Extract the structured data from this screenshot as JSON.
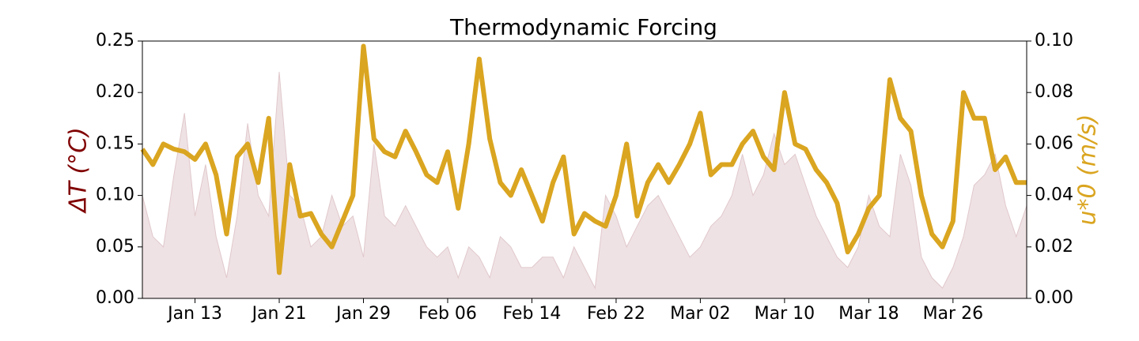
{
  "chart_data": {
    "type": "dual-axis",
    "title": "Thermodynamic Forcing",
    "ylabel": "ΔT (°C)",
    "y2label": "u*0 (m/s)",
    "x": [
      "Jan 08",
      "Jan 09",
      "Jan 10",
      "Jan 11",
      "Jan 12",
      "Jan 13",
      "Jan 14",
      "Jan 15",
      "Jan 16",
      "Jan 17",
      "Jan 18",
      "Jan 19",
      "Jan 20",
      "Jan 21",
      "Jan 22",
      "Jan 23",
      "Jan 24",
      "Jan 25",
      "Jan 26",
      "Jan 27",
      "Jan 28",
      "Jan 29",
      "Jan 30",
      "Jan 31",
      "Feb 01",
      "Feb 02",
      "Feb 03",
      "Feb 04",
      "Feb 05",
      "Feb 06",
      "Feb 07",
      "Feb 08",
      "Feb 09",
      "Feb 10",
      "Feb 11",
      "Feb 12",
      "Feb 13",
      "Feb 14",
      "Feb 15",
      "Feb 16",
      "Feb 17",
      "Feb 18",
      "Feb 19",
      "Feb 20",
      "Feb 21",
      "Feb 22",
      "Feb 23",
      "Feb 24",
      "Feb 25",
      "Feb 26",
      "Feb 27",
      "Feb 28",
      "Mar 01",
      "Mar 02",
      "Mar 03",
      "Mar 04",
      "Mar 05",
      "Mar 06",
      "Mar 07",
      "Mar 08",
      "Mar 09",
      "Mar 10",
      "Mar 11",
      "Mar 12",
      "Mar 13",
      "Mar 14",
      "Mar 15",
      "Mar 16",
      "Mar 17",
      "Mar 18",
      "Mar 19",
      "Mar 20",
      "Mar 21",
      "Mar 22",
      "Mar 23",
      "Mar 24",
      "Mar 25",
      "Mar 26",
      "Mar 27",
      "Mar 28",
      "Mar 29",
      "Mar 30",
      "Mar 31",
      "Apr 01",
      "Apr 02"
    ],
    "series": [
      {
        "kind": "area",
        "color": "#efe2e4",
        "values": [
          0.1,
          0.06,
          0.05,
          0.12,
          0.18,
          0.08,
          0.13,
          0.06,
          0.02,
          0.08,
          0.17,
          0.1,
          0.08,
          0.22,
          0.1,
          0.09,
          0.05,
          0.06,
          0.1,
          0.07,
          0.08,
          0.04,
          0.15,
          0.08,
          0.07,
          0.09,
          0.07,
          0.05,
          0.04,
          0.05,
          0.02,
          0.05,
          0.04,
          0.02,
          0.06,
          0.05,
          0.03,
          0.03,
          0.04,
          0.04,
          0.02,
          0.05,
          0.03,
          0.01,
          0.1,
          0.08,
          0.05,
          0.07,
          0.09,
          0.1,
          0.08,
          0.06,
          0.04,
          0.05,
          0.07,
          0.08,
          0.1,
          0.14,
          0.1,
          0.12,
          0.16,
          0.13,
          0.14,
          0.11,
          0.08,
          0.06,
          0.04,
          0.03,
          0.05,
          0.1,
          0.07,
          0.06,
          0.14,
          0.11,
          0.04,
          0.02,
          0.01,
          0.03,
          0.06,
          0.11,
          0.12,
          0.14,
          0.09,
          0.06,
          0.09
        ]
      },
      {
        "kind": "line",
        "axis": "y2",
        "color": "#daa520",
        "values": [
          0.058,
          0.052,
          0.06,
          0.058,
          0.057,
          0.054,
          0.06,
          0.048,
          0.025,
          0.055,
          0.06,
          0.045,
          0.07,
          0.01,
          0.052,
          0.032,
          0.033,
          0.025,
          0.02,
          0.03,
          0.04,
          0.098,
          0.062,
          0.057,
          0.055,
          0.065,
          0.057,
          0.048,
          0.045,
          0.057,
          0.035,
          0.06,
          0.093,
          0.062,
          0.045,
          0.04,
          0.05,
          0.04,
          0.03,
          0.045,
          0.055,
          0.025,
          0.033,
          0.03,
          0.028,
          0.04,
          0.06,
          0.032,
          0.045,
          0.052,
          0.045,
          0.052,
          0.06,
          0.072,
          0.048,
          0.052,
          0.052,
          0.06,
          0.065,
          0.055,
          0.05,
          0.08,
          0.06,
          0.058,
          0.05,
          0.045,
          0.037,
          0.018,
          0.025,
          0.035,
          0.04,
          0.085,
          0.07,
          0.065,
          0.04,
          0.025,
          0.02,
          0.03,
          0.08,
          0.07,
          0.07,
          0.05,
          0.055,
          0.045,
          0.045
        ]
      }
    ],
    "xlim": [
      "Jan 08",
      "Apr 02"
    ],
    "xticks": [
      "Jan 13",
      "Jan 21",
      "Jan 29",
      "Feb 06",
      "Feb 14",
      "Feb 22",
      "Mar 02",
      "Mar 10",
      "Mar 18",
      "Mar 26"
    ],
    "ylim": [
      0,
      0.25
    ],
    "yticks": [
      {
        "value": 0,
        "label": "0.00"
      },
      {
        "value": 0.05,
        "label": "0.05"
      },
      {
        "value": 0.1,
        "label": "0.10"
      },
      {
        "value": 0.15,
        "label": "0.15"
      },
      {
        "value": 0.2,
        "label": "0.20"
      },
      {
        "value": 0.25,
        "label": "0.25"
      }
    ],
    "y2lim": [
      0,
      0.1
    ],
    "y2ticks": [
      {
        "value": 0,
        "label": "0.00"
      },
      {
        "value": 0.02,
        "label": "0.02"
      },
      {
        "value": 0.04,
        "label": "0.04"
      },
      {
        "value": 0.06,
        "label": "0.06"
      },
      {
        "value": 0.08,
        "label": "0.08"
      },
      {
        "value": 0.1,
        "label": "0.10"
      }
    ],
    "ylabel_color": "#800000",
    "y2label_color": "#daa520"
  }
}
